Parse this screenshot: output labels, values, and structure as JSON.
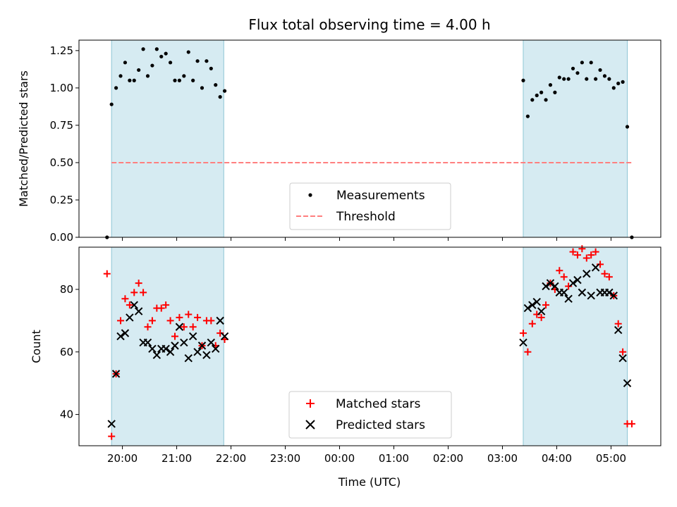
{
  "chart_data": [
    {
      "type": "scatter",
      "title": "Flux total observing time = 4.00 h",
      "ylabel": "Matched/Predicted stars",
      "ylim": [
        0,
        1.32
      ],
      "xlim": [
        "19:12",
        "05:55"
      ],
      "yticks": [
        "0.00",
        "0.25",
        "0.50",
        "0.75",
        "1.00",
        "1.25"
      ],
      "shaded_intervals": [
        [
          "19:48",
          "21:52"
        ],
        [
          "03:23",
          "05:18"
        ]
      ],
      "threshold": {
        "name": "Threshold",
        "value": 0.5,
        "from": "19:48",
        "to": "05:23",
        "color": "#ff7f7f"
      },
      "legend_position": "lower center",
      "series": [
        {
          "name": "Measurements",
          "marker": "dot",
          "color": "#000000",
          "points": [
            [
              "19:43",
              0.0
            ],
            [
              "19:48",
              0.89
            ],
            [
              "19:53",
              1.0
            ],
            [
              "19:58",
              1.08
            ],
            [
              "20:03",
              1.17
            ],
            [
              "20:08",
              1.05
            ],
            [
              "20:13",
              1.05
            ],
            [
              "20:18",
              1.12
            ],
            [
              "20:23",
              1.26
            ],
            [
              "20:28",
              1.08
            ],
            [
              "20:33",
              1.15
            ],
            [
              "20:38",
              1.26
            ],
            [
              "20:43",
              1.21
            ],
            [
              "20:48",
              1.23
            ],
            [
              "20:53",
              1.17
            ],
            [
              "20:58",
              1.05
            ],
            [
              "21:03",
              1.05
            ],
            [
              "21:08",
              1.08
            ],
            [
              "21:13",
              1.24
            ],
            [
              "21:18",
              1.05
            ],
            [
              "21:23",
              1.18
            ],
            [
              "21:28",
              1.0
            ],
            [
              "21:33",
              1.18
            ],
            [
              "21:38",
              1.13
            ],
            [
              "21:43",
              1.02
            ],
            [
              "21:48",
              0.94
            ],
            [
              "21:53",
              0.98
            ],
            [
              "03:23",
              1.05
            ],
            [
              "03:28",
              0.81
            ],
            [
              "03:33",
              0.92
            ],
            [
              "03:38",
              0.95
            ],
            [
              "03:43",
              0.97
            ],
            [
              "03:48",
              0.92
            ],
            [
              "03:53",
              1.02
            ],
            [
              "03:58",
              0.97
            ],
            [
              "04:03",
              1.07
            ],
            [
              "04:08",
              1.06
            ],
            [
              "04:13",
              1.06
            ],
            [
              "04:18",
              1.13
            ],
            [
              "04:23",
              1.1
            ],
            [
              "04:28",
              1.17
            ],
            [
              "04:33",
              1.06
            ],
            [
              "04:38",
              1.17
            ],
            [
              "04:43",
              1.06
            ],
            [
              "04:48",
              1.12
            ],
            [
              "04:53",
              1.08
            ],
            [
              "04:58",
              1.06
            ],
            [
              "05:03",
              1.0
            ],
            [
              "05:08",
              1.03
            ],
            [
              "05:13",
              1.04
            ],
            [
              "05:18",
              0.74
            ],
            [
              "05:23",
              0.0
            ]
          ]
        }
      ]
    },
    {
      "type": "scatter",
      "xlabel": "Time (UTC)",
      "ylabel": "Count",
      "ylim": [
        30,
        93.5
      ],
      "xlim": [
        "19:12",
        "05:55"
      ],
      "yticks": [
        "40",
        "60",
        "80"
      ],
      "xticks": [
        "20:00",
        "21:00",
        "22:00",
        "23:00",
        "00:00",
        "01:00",
        "02:00",
        "03:00",
        "04:00",
        "05:00"
      ],
      "shaded_intervals": [
        [
          "19:48",
          "21:52"
        ],
        [
          "03:23",
          "05:18"
        ]
      ],
      "legend_position": "lower center",
      "series": [
        {
          "name": "Matched stars",
          "marker": "plus",
          "color": "#ff0000",
          "points": [
            [
              "19:43",
              85
            ],
            [
              "19:48",
              33
            ],
            [
              "19:53",
              53
            ],
            [
              "19:58",
              70
            ],
            [
              "20:03",
              77
            ],
            [
              "20:08",
              75
            ],
            [
              "20:13",
              79
            ],
            [
              "20:18",
              82
            ],
            [
              "20:23",
              79
            ],
            [
              "20:28",
              68
            ],
            [
              "20:33",
              70
            ],
            [
              "20:38",
              74
            ],
            [
              "20:43",
              74
            ],
            [
              "20:48",
              75
            ],
            [
              "20:53",
              70
            ],
            [
              "20:58",
              65
            ],
            [
              "21:03",
              71
            ],
            [
              "21:08",
              68
            ],
            [
              "21:13",
              72
            ],
            [
              "21:18",
              68
            ],
            [
              "21:23",
              71
            ],
            [
              "21:28",
              62
            ],
            [
              "21:33",
              70
            ],
            [
              "21:38",
              70
            ],
            [
              "21:43",
              62
            ],
            [
              "21:48",
              66
            ],
            [
              "21:53",
              64
            ],
            [
              "03:23",
              66
            ],
            [
              "03:28",
              60
            ],
            [
              "03:33",
              69
            ],
            [
              "03:38",
              72
            ],
            [
              "03:43",
              71
            ],
            [
              "03:48",
              75
            ],
            [
              "03:53",
              82
            ],
            [
              "03:58",
              80
            ],
            [
              "04:03",
              86
            ],
            [
              "04:08",
              84
            ],
            [
              "04:13",
              81
            ],
            [
              "04:18",
              92
            ],
            [
              "04:23",
              91
            ],
            [
              "04:28",
              93
            ],
            [
              "04:33",
              90
            ],
            [
              "04:38",
              91
            ],
            [
              "04:43",
              92
            ],
            [
              "04:48",
              88
            ],
            [
              "04:53",
              85
            ],
            [
              "04:58",
              84
            ],
            [
              "05:03",
              78
            ],
            [
              "05:08",
              69
            ],
            [
              "05:13",
              60
            ],
            [
              "05:18",
              37
            ],
            [
              "05:23",
              37
            ]
          ]
        },
        {
          "name": "Predicted stars",
          "marker": "x",
          "color": "#000000",
          "points": [
            [
              "19:48",
              37
            ],
            [
              "19:53",
              53
            ],
            [
              "19:58",
              65
            ],
            [
              "20:03",
              66
            ],
            [
              "20:08",
              71
            ],
            [
              "20:13",
              75
            ],
            [
              "20:18",
              73
            ],
            [
              "20:23",
              63
            ],
            [
              "20:28",
              63
            ],
            [
              "20:33",
              61
            ],
            [
              "20:38",
              59
            ],
            [
              "20:43",
              61
            ],
            [
              "20:48",
              61
            ],
            [
              "20:53",
              60
            ],
            [
              "20:58",
              62
            ],
            [
              "21:03",
              68
            ],
            [
              "21:08",
              63
            ],
            [
              "21:13",
              58
            ],
            [
              "21:18",
              65
            ],
            [
              "21:23",
              60
            ],
            [
              "21:28",
              62
            ],
            [
              "21:33",
              59
            ],
            [
              "21:38",
              63
            ],
            [
              "21:43",
              61
            ],
            [
              "21:48",
              70
            ],
            [
              "21:53",
              65
            ],
            [
              "03:23",
              63
            ],
            [
              "03:28",
              74
            ],
            [
              "03:33",
              75
            ],
            [
              "03:38",
              76
            ],
            [
              "03:43",
              73
            ],
            [
              "03:48",
              81
            ],
            [
              "03:53",
              82
            ],
            [
              "03:58",
              81
            ],
            [
              "04:03",
              79
            ],
            [
              "04:08",
              79
            ],
            [
              "04:13",
              77
            ],
            [
              "04:18",
              82
            ],
            [
              "04:23",
              83
            ],
            [
              "04:28",
              79
            ],
            [
              "04:33",
              85
            ],
            [
              "04:38",
              78
            ],
            [
              "04:43",
              87
            ],
            [
              "04:48",
              79
            ],
            [
              "04:53",
              79
            ],
            [
              "04:58",
              79
            ],
            [
              "05:03",
              78
            ],
            [
              "05:08",
              67
            ],
            [
              "05:13",
              58
            ],
            [
              "05:18",
              50
            ]
          ]
        }
      ]
    }
  ]
}
